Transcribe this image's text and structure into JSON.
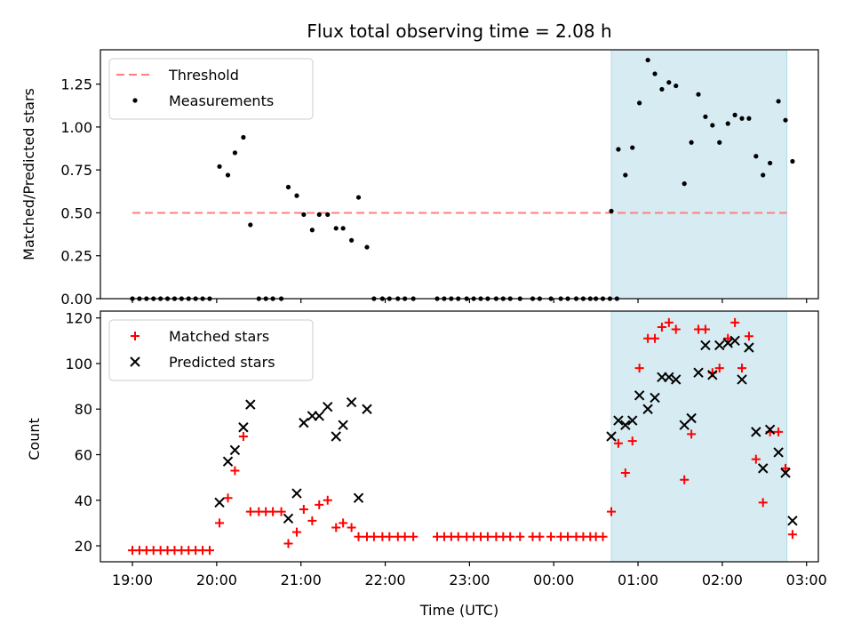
{
  "chart_data": {
    "title": "Flux total observing time = 2.08 h",
    "xlabel": "Time (UTC)",
    "x_ticks": [
      "19:00",
      "20:00",
      "21:00",
      "22:00",
      "23:00",
      "00:00",
      "01:00",
      "02:00",
      "03:00"
    ],
    "shaded_region": {
      "start": "00:41",
      "end": "02:46",
      "color": "#add8e6"
    },
    "panels": [
      {
        "type": "scatter",
        "ylabel": "Matched/Predicted stars",
        "ylim": [
          0,
          1.45
        ],
        "y_ticks": [
          "0.00",
          "0.25",
          "0.50",
          "0.75",
          "1.00",
          "1.25"
        ],
        "legend_position": "top-left",
        "threshold": {
          "name": "Threshold",
          "value": 0.5,
          "x_start": "19:00",
          "x_end": "02:46",
          "color": "#ff7f7f"
        },
        "series": [
          {
            "name": "Measurements",
            "color": "#000000",
            "marker": "dot",
            "points": [
              [
                "19:00",
                0
              ],
              [
                "19:05",
                0
              ],
              [
                "19:10",
                0
              ],
              [
                "19:15",
                0
              ],
              [
                "19:20",
                0
              ],
              [
                "19:25",
                0
              ],
              [
                "19:30",
                0
              ],
              [
                "19:35",
                0
              ],
              [
                "19:40",
                0
              ],
              [
                "19:45",
                0
              ],
              [
                "19:50",
                0
              ],
              [
                "19:55",
                0
              ],
              [
                "20:02",
                0.77
              ],
              [
                "20:08",
                0.72
              ],
              [
                "20:13",
                0.85
              ],
              [
                "20:19",
                0.94
              ],
              [
                "20:24",
                0.43
              ],
              [
                "20:30",
                0
              ],
              [
                "20:35",
                0
              ],
              [
                "20:40",
                0
              ],
              [
                "20:46",
                0
              ],
              [
                "20:51",
                0.65
              ],
              [
                "20:57",
                0.6
              ],
              [
                "21:02",
                0.49
              ],
              [
                "21:08",
                0.4
              ],
              [
                "21:13",
                0.49
              ],
              [
                "21:19",
                0.49
              ],
              [
                "21:25",
                0.41
              ],
              [
                "21:30",
                0.41
              ],
              [
                "21:36",
                0.34
              ],
              [
                "21:41",
                0.59
              ],
              [
                "21:47",
                0.3
              ],
              [
                "21:52",
                0
              ],
              [
                "21:58",
                0
              ],
              [
                "22:03",
                0
              ],
              [
                "22:09",
                0
              ],
              [
                "22:14",
                0
              ],
              [
                "22:20",
                0
              ],
              [
                "22:37",
                0
              ],
              [
                "22:42",
                0
              ],
              [
                "22:47",
                0
              ],
              [
                "22:52",
                0
              ],
              [
                "22:58",
                0
              ],
              [
                "23:03",
                0
              ],
              [
                "23:08",
                0
              ],
              [
                "23:13",
                0
              ],
              [
                "23:19",
                0
              ],
              [
                "23:24",
                0
              ],
              [
                "23:29",
                0
              ],
              [
                "23:36",
                0
              ],
              [
                "23:45",
                0
              ],
              [
                "23:50",
                0
              ],
              [
                "23:58",
                0
              ],
              [
                "00:05",
                0
              ],
              [
                "00:10",
                0
              ],
              [
                "00:16",
                0
              ],
              [
                "00:21",
                0
              ],
              [
                "00:26",
                0
              ],
              [
                "00:30",
                0
              ],
              [
                "00:35",
                0
              ],
              [
                "00:40",
                0
              ],
              [
                "00:45",
                0
              ],
              [
                "00:41",
                0.51
              ],
              [
                "00:46",
                0.87
              ],
              [
                "00:51",
                0.72
              ],
              [
                "00:56",
                0.88
              ],
              [
                "01:01",
                1.14
              ],
              [
                "01:07",
                1.39
              ],
              [
                "01:12",
                1.31
              ],
              [
                "01:17",
                1.22
              ],
              [
                "01:22",
                1.26
              ],
              [
                "01:27",
                1.24
              ],
              [
                "01:33",
                0.67
              ],
              [
                "01:38",
                0.91
              ],
              [
                "01:43",
                1.19
              ],
              [
                "01:48",
                1.06
              ],
              [
                "01:53",
                1.01
              ],
              [
                "01:58",
                0.91
              ],
              [
                "02:04",
                1.02
              ],
              [
                "02:09",
                1.07
              ],
              [
                "02:14",
                1.05
              ],
              [
                "02:19",
                1.05
              ],
              [
                "02:24",
                0.83
              ],
              [
                "02:29",
                0.72
              ],
              [
                "02:34",
                0.79
              ],
              [
                "02:40",
                1.15
              ],
              [
                "02:45",
                1.04
              ],
              [
                "02:50",
                0.8
              ]
            ]
          }
        ]
      },
      {
        "type": "scatter",
        "ylabel": "Count",
        "ylim": [
          13,
          123
        ],
        "y_ticks": [
          "20",
          "40",
          "60",
          "80",
          "100",
          "120"
        ],
        "legend_position": "top-left",
        "series": [
          {
            "name": "Matched stars",
            "color": "#ff0000",
            "marker": "plus",
            "points": [
              [
                "19:00",
                18
              ],
              [
                "19:05",
                18
              ],
              [
                "19:10",
                18
              ],
              [
                "19:15",
                18
              ],
              [
                "19:20",
                18
              ],
              [
                "19:25",
                18
              ],
              [
                "19:30",
                18
              ],
              [
                "19:35",
                18
              ],
              [
                "19:40",
                18
              ],
              [
                "19:45",
                18
              ],
              [
                "19:50",
                18
              ],
              [
                "19:55",
                18
              ],
              [
                "20:02",
                30
              ],
              [
                "20:08",
                41
              ],
              [
                "20:13",
                53
              ],
              [
                "20:19",
                68
              ],
              [
                "20:24",
                35
              ],
              [
                "20:30",
                35
              ],
              [
                "20:35",
                35
              ],
              [
                "20:40",
                35
              ],
              [
                "20:46",
                35
              ],
              [
                "20:51",
                21
              ],
              [
                "20:57",
                26
              ],
              [
                "21:02",
                36
              ],
              [
                "21:08",
                31
              ],
              [
                "21:13",
                38
              ],
              [
                "21:19",
                40
              ],
              [
                "21:25",
                28
              ],
              [
                "21:30",
                30
              ],
              [
                "21:36",
                28
              ],
              [
                "21:41",
                24
              ],
              [
                "21:47",
                24
              ],
              [
                "21:52",
                24
              ],
              [
                "21:58",
                24
              ],
              [
                "22:03",
                24
              ],
              [
                "22:09",
                24
              ],
              [
                "22:14",
                24
              ],
              [
                "22:20",
                24
              ],
              [
                "22:37",
                24
              ],
              [
                "22:42",
                24
              ],
              [
                "22:47",
                24
              ],
              [
                "22:52",
                24
              ],
              [
                "22:58",
                24
              ],
              [
                "23:03",
                24
              ],
              [
                "23:08",
                24
              ],
              [
                "23:13",
                24
              ],
              [
                "23:19",
                24
              ],
              [
                "23:24",
                24
              ],
              [
                "23:29",
                24
              ],
              [
                "23:36",
                24
              ],
              [
                "23:45",
                24
              ],
              [
                "23:50",
                24
              ],
              [
                "23:58",
                24
              ],
              [
                "00:05",
                24
              ],
              [
                "00:10",
                24
              ],
              [
                "00:16",
                24
              ],
              [
                "00:21",
                24
              ],
              [
                "00:26",
                24
              ],
              [
                "00:30",
                24
              ],
              [
                "00:35",
                24
              ],
              [
                "00:41",
                35
              ],
              [
                "00:46",
                65
              ],
              [
                "00:51",
                52
              ],
              [
                "00:56",
                66
              ],
              [
                "01:01",
                98
              ],
              [
                "01:07",
                111
              ],
              [
                "01:12",
                111
              ],
              [
                "01:17",
                116
              ],
              [
                "01:22",
                118
              ],
              [
                "01:27",
                115
              ],
              [
                "01:33",
                49
              ],
              [
                "01:38",
                69
              ],
              [
                "01:43",
                115
              ],
              [
                "01:48",
                115
              ],
              [
                "01:53",
                96
              ],
              [
                "01:58",
                98
              ],
              [
                "02:04",
                111
              ],
              [
                "02:09",
                118
              ],
              [
                "02:14",
                98
              ],
              [
                "02:19",
                112
              ],
              [
                "02:24",
                58
              ],
              [
                "02:29",
                39
              ],
              [
                "02:34",
                70
              ],
              [
                "02:40",
                70
              ],
              [
                "02:45",
                54
              ],
              [
                "02:50",
                25
              ]
            ]
          },
          {
            "name": "Predicted stars",
            "color": "#000000",
            "marker": "x",
            "points": [
              [
                "20:02",
                39
              ],
              [
                "20:08",
                57
              ],
              [
                "20:13",
                62
              ],
              [
                "20:19",
                72
              ],
              [
                "20:24",
                82
              ],
              [
                "20:51",
                32
              ],
              [
                "20:57",
                43
              ],
              [
                "21:02",
                74
              ],
              [
                "21:08",
                77
              ],
              [
                "21:13",
                77
              ],
              [
                "21:19",
                81
              ],
              [
                "21:25",
                68
              ],
              [
                "21:30",
                73
              ],
              [
                "21:36",
                83
              ],
              [
                "21:41",
                41
              ],
              [
                "21:47",
                80
              ],
              [
                "00:41",
                68
              ],
              [
                "00:46",
                75
              ],
              [
                "00:51",
                73
              ],
              [
                "00:56",
                75
              ],
              [
                "01:01",
                86
              ],
              [
                "01:07",
                80
              ],
              [
                "01:12",
                85
              ],
              [
                "01:17",
                94
              ],
              [
                "01:22",
                94
              ],
              [
                "01:27",
                93
              ],
              [
                "01:33",
                73
              ],
              [
                "01:38",
                76
              ],
              [
                "01:43",
                96
              ],
              [
                "01:48",
                108
              ],
              [
                "01:53",
                95
              ],
              [
                "01:58",
                108
              ],
              [
                "02:04",
                109
              ],
              [
                "02:09",
                110
              ],
              [
                "02:14",
                93
              ],
              [
                "02:19",
                107
              ],
              [
                "02:24",
                70
              ],
              [
                "02:29",
                54
              ],
              [
                "02:34",
                71
              ],
              [
                "02:40",
                61
              ],
              [
                "02:45",
                52
              ],
              [
                "02:50",
                31
              ]
            ]
          }
        ]
      }
    ]
  }
}
